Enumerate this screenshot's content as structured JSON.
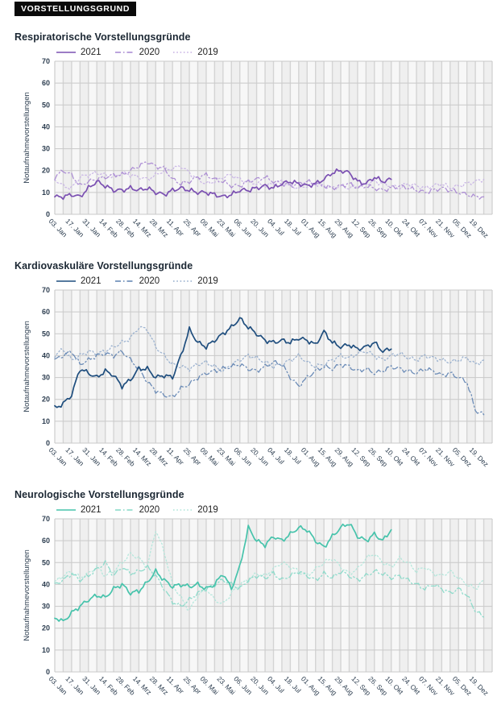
{
  "header": {
    "badge": "VORSTELLUNGSGRUND"
  },
  "chart_data": [
    {
      "type": "line",
      "title": "Respiratorische Vorstellungsgründe",
      "ylabel": "Notaufnahmevorstellungen",
      "ylim": [
        0,
        70
      ],
      "y_ticks": [
        0,
        10,
        20,
        30,
        40,
        50,
        60,
        70
      ],
      "weeks": 52,
      "x_tick_week_interval": 2,
      "x_tick_labels": [
        "03. Jan",
        "17. Jan",
        "31. Jan",
        "14. Feb",
        "28. Feb",
        "14. Mrz",
        "28. Mrz",
        "11. Apr",
        "25. Apr",
        "09. Mai",
        "23. Mai",
        "06. Jun",
        "20. Jun",
        "04. Jul",
        "18. Jul",
        "01. Aug",
        "15. Aug",
        "29. Aug",
        "12. Sep",
        "26. Sep",
        "10. Okt",
        "24. Okt",
        "07. Nov",
        "21. Nov",
        "05. Dez",
        "19. Dez"
      ],
      "grid": "weekly vertical bands, horizontal lines every 10",
      "legend_position": "top-left",
      "series": [
        {
          "name": "2021",
          "color": "#7b50b2",
          "line_style": "solid",
          "values": [
            8,
            8,
            9,
            8,
            12,
            15,
            13,
            11,
            11,
            12,
            11,
            12,
            10,
            9,
            11,
            12,
            11,
            10,
            10,
            9,
            8,
            9,
            11,
            11,
            12,
            13,
            12,
            14,
            15,
            14,
            13,
            14,
            16,
            19,
            20,
            19,
            15,
            14,
            17,
            15,
            16
          ]
        },
        {
          "name": "2020",
          "color": "#a685d2",
          "line_style": "dashdot",
          "values": [
            17,
            20,
            18,
            13,
            15,
            16,
            17,
            18,
            18,
            20,
            22,
            24,
            22,
            21,
            16,
            14,
            15,
            17,
            18,
            16,
            15,
            13,
            13,
            15,
            16,
            17,
            15,
            14,
            13,
            14,
            15,
            14,
            13,
            12,
            13,
            14,
            12,
            13,
            12,
            11,
            12,
            13,
            12,
            11,
            10,
            11,
            12,
            11,
            10,
            9,
            8,
            8
          ]
        },
        {
          "name": "2019",
          "color": "#c7b1e4",
          "line_style": "dotted",
          "values": [
            16,
            13,
            12,
            17,
            18,
            19,
            18,
            17,
            19,
            18,
            17,
            16,
            18,
            20,
            21,
            22,
            19,
            16,
            14,
            15,
            17,
            18,
            16,
            15,
            14,
            13,
            14,
            15,
            13,
            12,
            13,
            14,
            13,
            12,
            13,
            12,
            13,
            14,
            15,
            14,
            13,
            12,
            14,
            13,
            12,
            13,
            14,
            12,
            13,
            14,
            15,
            16
          ]
        }
      ]
    },
    {
      "type": "line",
      "title": "Kardiovaskuläre Vorstellungsgründe",
      "ylabel": "Notaufnahmevorstellungen",
      "ylim": [
        0,
        70
      ],
      "y_ticks": [
        0,
        10,
        20,
        30,
        40,
        50,
        60,
        70
      ],
      "weeks": 52,
      "x_tick_week_interval": 2,
      "x_tick_labels": [
        "03. Jan",
        "17. Jan",
        "31. Jan",
        "14. Feb",
        "28. Feb",
        "14. Mrz",
        "28. Mrz",
        "11. Apr",
        "25. Apr",
        "09. Mai",
        "23. Mai",
        "06. Jun",
        "20. Jun",
        "04. Jul",
        "18. Jul",
        "01. Aug",
        "15. Aug",
        "29. Aug",
        "12. Sep",
        "26. Sep",
        "10. Okt",
        "24. Okt",
        "07. Nov",
        "21. Nov",
        "05. Dez",
        "19. Dez"
      ],
      "grid": "weekly vertical bands, horizontal lines every 10",
      "legend_position": "top-left",
      "series": [
        {
          "name": "2021",
          "color": "#1f4e7e",
          "line_style": "solid",
          "values": [
            16,
            18,
            22,
            34,
            32,
            30,
            33,
            31,
            26,
            29,
            34,
            34,
            30,
            31,
            30,
            40,
            52,
            46,
            44,
            47,
            50,
            53,
            57,
            53,
            50,
            47,
            46,
            47,
            46,
            48,
            47,
            45,
            51,
            46,
            44,
            45,
            43,
            44,
            46,
            42,
            43
          ]
        },
        {
          "name": "2020",
          "color": "#5d81b0",
          "line_style": "dashdot",
          "values": [
            38,
            40,
            42,
            36,
            38,
            40,
            41,
            40,
            42,
            38,
            34,
            28,
            24,
            22,
            21,
            25,
            27,
            30,
            32,
            33,
            34,
            35,
            36,
            34,
            33,
            35,
            37,
            36,
            30,
            26,
            30,
            33,
            35,
            34,
            36,
            35,
            33,
            34,
            32,
            33,
            35,
            34,
            33,
            32,
            34,
            33,
            31,
            32,
            30,
            28,
            15,
            13
          ]
        },
        {
          "name": "2019",
          "color": "#93accc",
          "line_style": "dotted",
          "values": [
            40,
            43,
            38,
            40,
            42,
            41,
            42,
            44,
            46,
            48,
            53,
            52,
            44,
            40,
            36,
            35,
            34,
            36,
            37,
            35,
            33,
            36,
            38,
            40,
            39,
            37,
            35,
            36,
            38,
            40,
            37,
            35,
            36,
            38,
            40,
            39,
            41,
            42,
            40,
            38,
            40,
            41,
            39,
            38,
            40,
            39,
            38,
            37,
            38,
            39,
            36,
            38
          ]
        }
      ]
    },
    {
      "type": "line",
      "title": "Neurologische Vorstellungsgründe",
      "ylabel": "Notaufnahmevorstellungen",
      "ylim": [
        0,
        70
      ],
      "y_ticks": [
        0,
        10,
        20,
        30,
        40,
        50,
        60,
        70
      ],
      "weeks": 52,
      "x_tick_week_interval": 2,
      "x_tick_labels": [
        "03. Jan",
        "17. Jan",
        "31. Jan",
        "14. Feb",
        "28. Feb",
        "14. Mrz",
        "28. Mrz",
        "11. Apr",
        "25. Apr",
        "09. Mai",
        "23. Mai",
        "06. Jun",
        "20. Jun",
        "04. Jul",
        "18. Jul",
        "01. Aug",
        "15. Aug",
        "29. Aug",
        "12. Sep",
        "26. Sep",
        "10. Okt",
        "24. Okt",
        "07. Nov",
        "21. Nov",
        "05. Dez",
        "19. Dez"
      ],
      "grid": "weekly vertical bands, horizontal lines every 10",
      "legend_position": "top-left",
      "series": [
        {
          "name": "2021",
          "color": "#46c3ab",
          "line_style": "solid",
          "values": [
            25,
            23,
            27,
            30,
            33,
            35,
            34,
            38,
            40,
            36,
            37,
            41,
            46,
            42,
            39,
            40,
            39,
            40,
            38,
            40,
            45,
            38,
            48,
            66,
            60,
            58,
            62,
            60,
            63,
            66,
            65,
            60,
            57,
            62,
            66,
            68,
            62,
            60,
            63,
            60,
            65
          ]
        },
        {
          "name": "2020",
          "color": "#83d8c6",
          "line_style": "dashdot",
          "values": [
            40,
            42,
            45,
            42,
            44,
            47,
            50,
            44,
            48,
            45,
            46,
            48,
            44,
            38,
            32,
            30,
            33,
            36,
            38,
            40,
            42,
            40,
            38,
            42,
            44,
            43,
            45,
            42,
            44,
            46,
            44,
            42,
            45,
            43,
            46,
            44,
            42,
            44,
            46,
            45,
            43,
            44,
            42,
            40,
            38,
            40,
            38,
            36,
            38,
            35,
            28,
            25
          ]
        },
        {
          "name": "2019",
          "color": "#aee5d9",
          "line_style": "dotted",
          "values": [
            41,
            44,
            46,
            43,
            45,
            48,
            44,
            46,
            50,
            54,
            52,
            48,
            65,
            55,
            40,
            34,
            28,
            35,
            38,
            33,
            31,
            36,
            40,
            42,
            45,
            44,
            47,
            50,
            48,
            46,
            44,
            47,
            50,
            52,
            48,
            45,
            47,
            52,
            54,
            50,
            48,
            52,
            50,
            46,
            48,
            45,
            44,
            46,
            43,
            40,
            38,
            42
          ]
        }
      ]
    }
  ],
  "style": {
    "band_even": "#f7f7f7",
    "band_odd": "#efefef",
    "vgrid_color": "#d4d4d4",
    "hgrid_color": "#c9c9c9",
    "tick_text_color": "#2d3e50"
  }
}
